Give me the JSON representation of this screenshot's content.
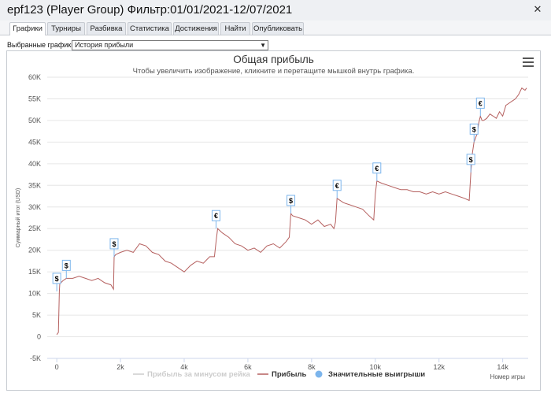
{
  "window": {
    "title": "epf123 (Player Group) Фильтр:01/01/2021-12/07/2021",
    "close_glyph": "✕"
  },
  "tabs": [
    {
      "label": "Графики",
      "active": true
    },
    {
      "label": "Турниры",
      "active": false
    },
    {
      "label": "Разбивка",
      "active": false
    },
    {
      "label": "Статистика",
      "active": false
    },
    {
      "label": "Достижения",
      "active": false
    },
    {
      "label": "Найти",
      "active": false
    },
    {
      "label": "Опубликовать",
      "active": false
    }
  ],
  "selector": {
    "label": "Выбранные графики:",
    "value": "История прибыли"
  },
  "chart_data": {
    "type": "line",
    "title": "Общая прибыль",
    "subtitle": "Чтобы увеличить изображение, кликните и перетащите мышкой внутрь графика.",
    "ylabel": "Суммарный итог (USD)",
    "xlabel": "Номер игры",
    "ylim": [
      -5000,
      60000
    ],
    "xlim": [
      -300,
      14800
    ],
    "y_ticks": [
      "-5K",
      "0",
      "5K",
      "10K",
      "15K",
      "20K",
      "25K",
      "30K",
      "35K",
      "40K",
      "45K",
      "50K",
      "55K",
      "60K"
    ],
    "y_tick_values": [
      -5000,
      0,
      5000,
      10000,
      15000,
      20000,
      25000,
      30000,
      35000,
      40000,
      45000,
      50000,
      55000,
      60000
    ],
    "x_ticks": [
      "0",
      "2k",
      "4k",
      "6k",
      "8k",
      "10k",
      "12k",
      "14k"
    ],
    "x_tick_values": [
      0,
      2000,
      4000,
      6000,
      8000,
      10000,
      12000,
      14000
    ],
    "grid": true,
    "series": [
      {
        "name": "Прибыль за минусом рейка",
        "color": "#cccccc",
        "visible": false
      },
      {
        "name": "Прибыль",
        "color": "#b5605f",
        "x": [
          0,
          50,
          80,
          100,
          130,
          200,
          300,
          500,
          700,
          900,
          1100,
          1300,
          1500,
          1700,
          1780,
          1800,
          1850,
          2000,
          2200,
          2400,
          2600,
          2800,
          3000,
          3200,
          3400,
          3600,
          3800,
          4000,
          4200,
          4400,
          4600,
          4800,
          4950,
          5000,
          5050,
          5200,
          5400,
          5600,
          5800,
          6000,
          6200,
          6400,
          6600,
          6800,
          7000,
          7200,
          7300,
          7350,
          7400,
          7600,
          7800,
          8000,
          8200,
          8400,
          8600,
          8700,
          8750,
          8800,
          9000,
          9200,
          9400,
          9600,
          9800,
          9950,
          10000,
          10050,
          10200,
          10400,
          10600,
          10800,
          11000,
          11200,
          11400,
          11600,
          11800,
          12000,
          12200,
          12400,
          12600,
          12800,
          12950,
          13000,
          13050,
          13100,
          13150,
          13200,
          13250,
          13300,
          13350,
          13400,
          13500,
          13600,
          13700,
          13800,
          13900,
          14000,
          14100,
          14200,
          14300,
          14400,
          14500,
          14600,
          14700,
          14750
        ],
        "values": [
          500,
          1000,
          10500,
          13000,
          12500,
          13000,
          13500,
          13500,
          14000,
          13500,
          13000,
          13500,
          12500,
          12000,
          11000,
          18500,
          19000,
          19500,
          20000,
          19500,
          21500,
          21000,
          19500,
          19000,
          17500,
          17000,
          16000,
          15000,
          16500,
          17500,
          17000,
          18500,
          18500,
          22000,
          25000,
          24000,
          23000,
          21500,
          21000,
          20000,
          20500,
          19500,
          21000,
          21500,
          20500,
          22000,
          23000,
          28500,
          28000,
          27500,
          27000,
          26000,
          27000,
          25500,
          26000,
          25000,
          26500,
          32000,
          31000,
          30500,
          30000,
          29500,
          28000,
          27000,
          33000,
          36000,
          35500,
          35000,
          34500,
          34000,
          34000,
          33500,
          33500,
          33000,
          33500,
          33000,
          33500,
          33000,
          32500,
          32000,
          31500,
          38000,
          42500,
          45000,
          46000,
          47000,
          49500,
          51000,
          50000,
          50000,
          50500,
          51500,
          51000,
          50500,
          52000,
          51000,
          53500,
          54000,
          54500,
          55000,
          56000,
          57500,
          57000,
          57500
        ]
      },
      {
        "name": "Значительные выигрыши",
        "color": "#7cb5ec"
      }
    ],
    "markers": [
      {
        "x": 0,
        "y": 10500,
        "symbol": "$"
      },
      {
        "x": 300,
        "y": 13500,
        "symbol": "$"
      },
      {
        "x": 1800,
        "y": 18500,
        "symbol": "$"
      },
      {
        "x": 5000,
        "y": 25000,
        "symbol": "€"
      },
      {
        "x": 7350,
        "y": 28500,
        "symbol": "$"
      },
      {
        "x": 8800,
        "y": 32000,
        "symbol": "€"
      },
      {
        "x": 10050,
        "y": 36000,
        "symbol": "€"
      },
      {
        "x": 13000,
        "y": 38000,
        "symbol": "$"
      },
      {
        "x": 13100,
        "y": 45000,
        "symbol": "$"
      },
      {
        "x": 13300,
        "y": 51000,
        "symbol": "€"
      }
    ],
    "legend_position": "bottom"
  }
}
